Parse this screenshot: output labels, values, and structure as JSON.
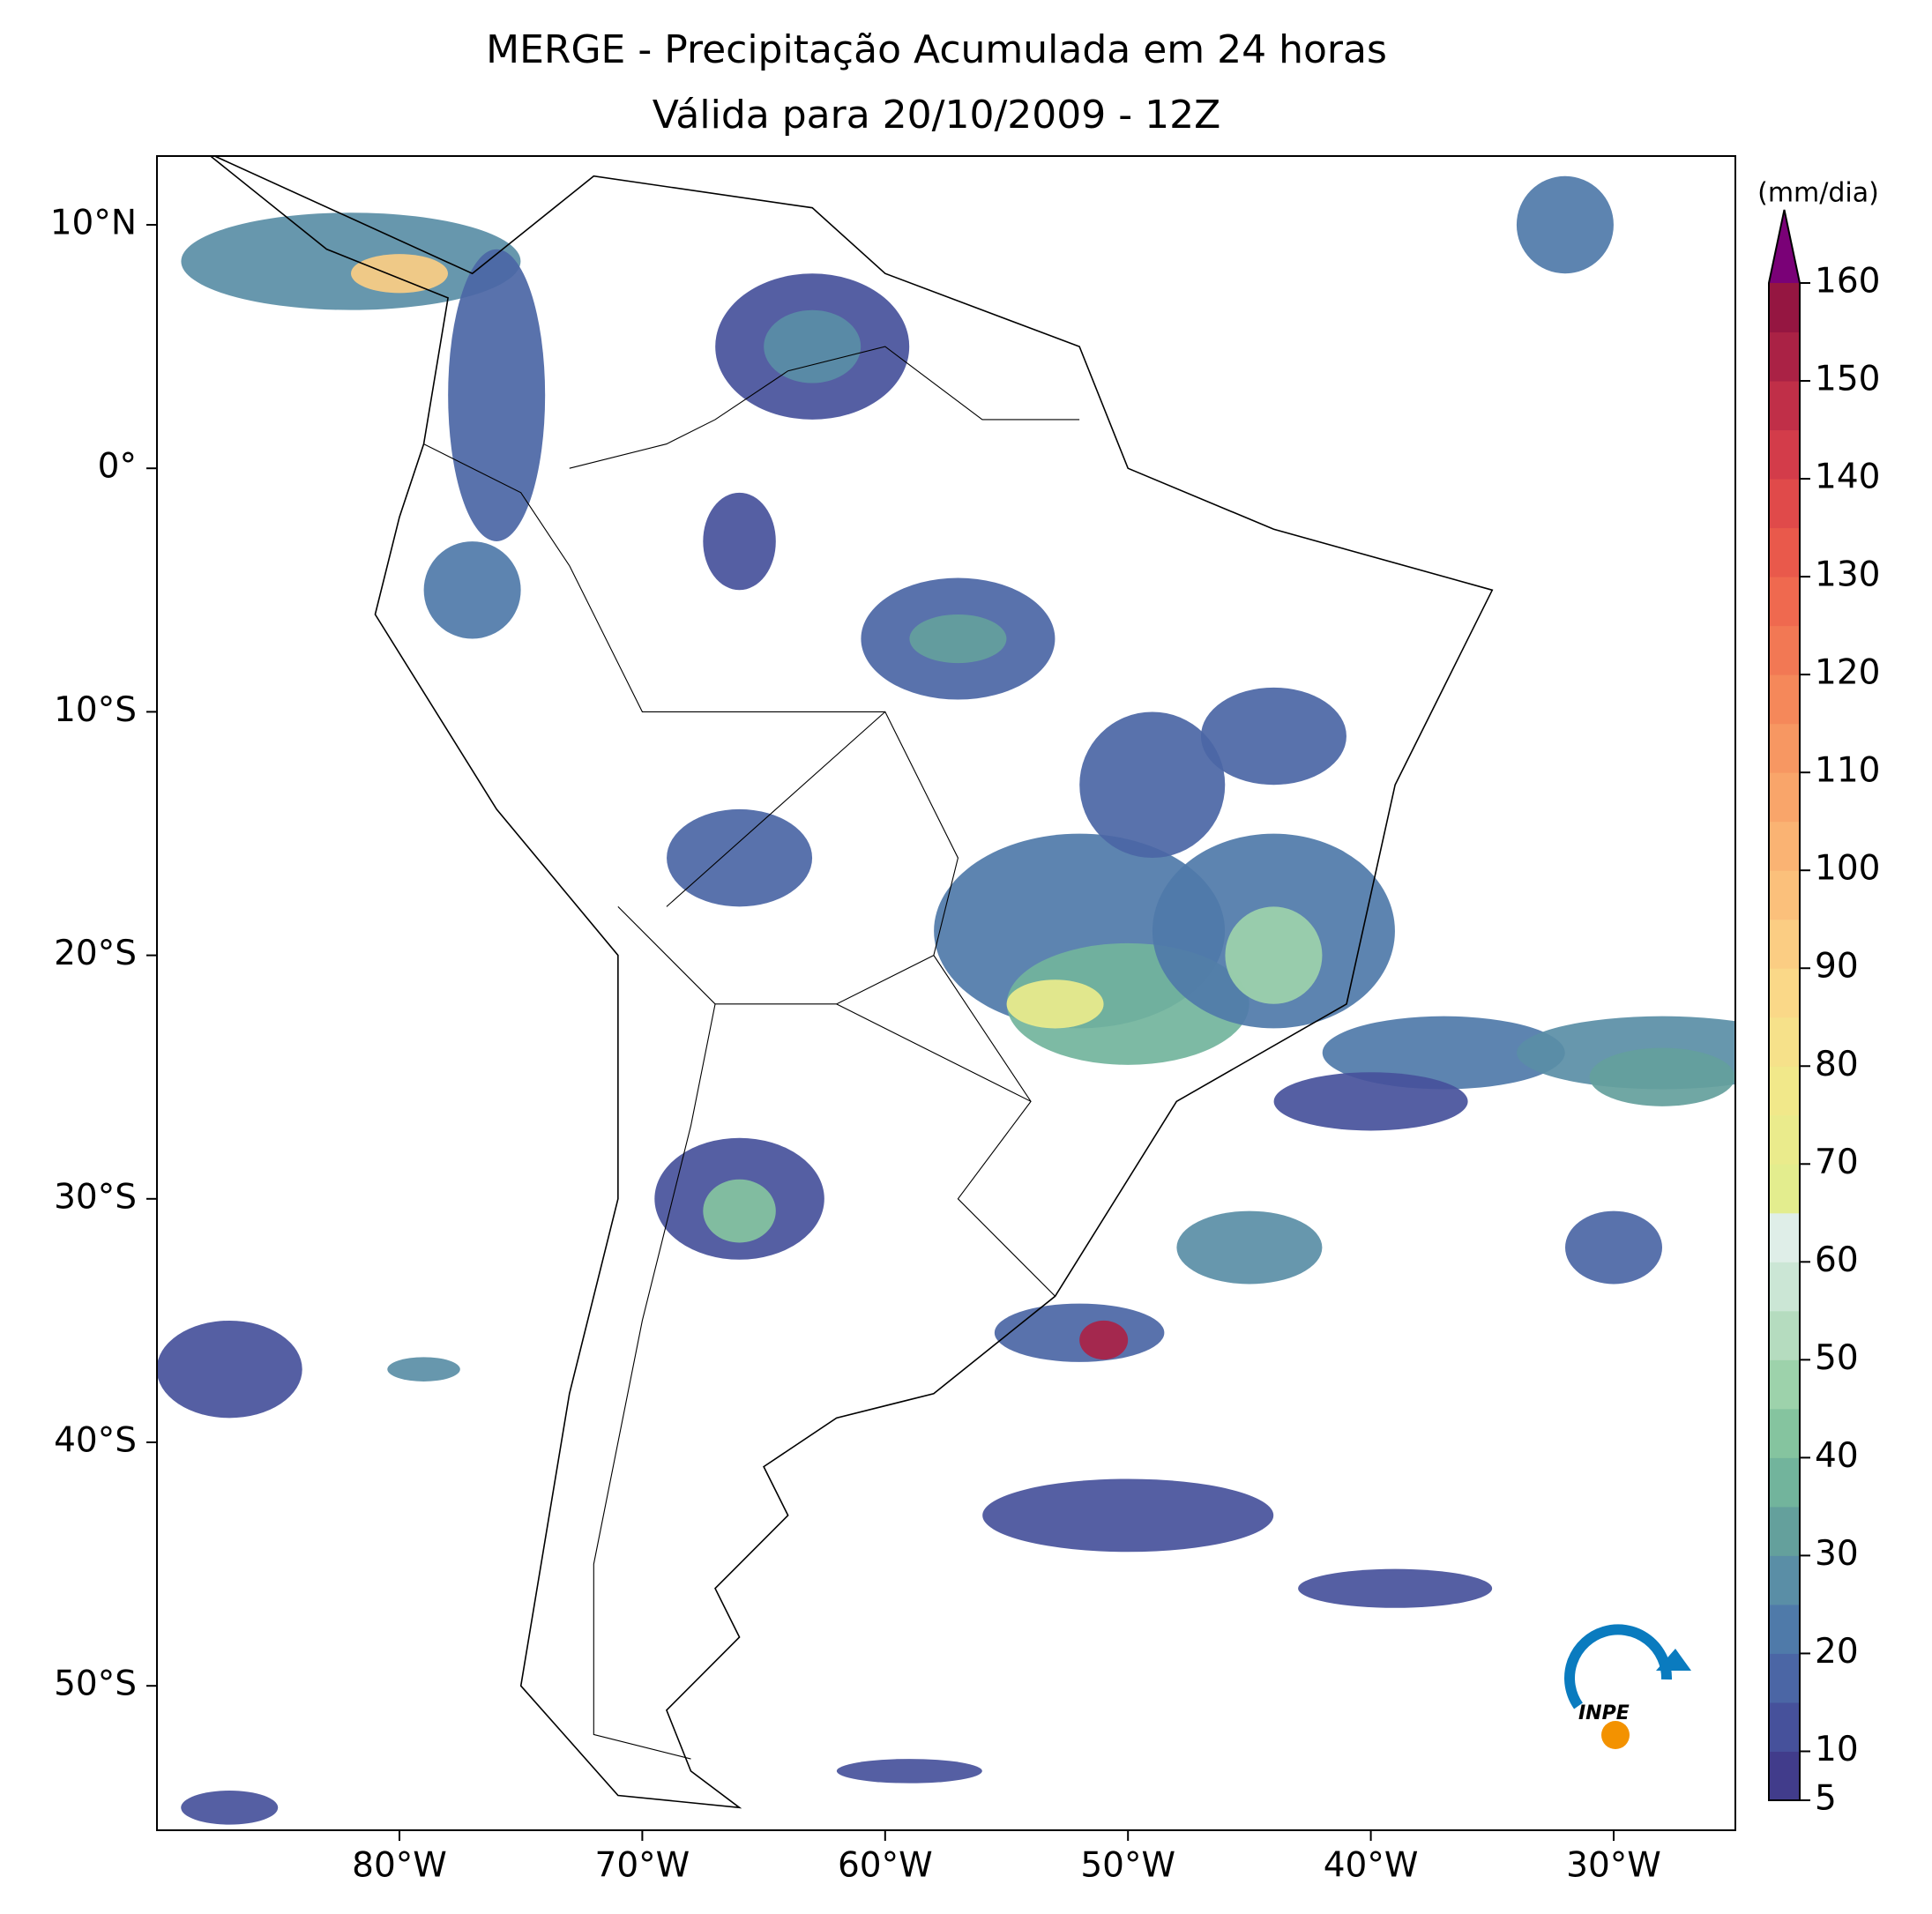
{
  "title": "MERGE - Precipitação Acumulada em 24 horas",
  "subtitle": "Válida para 20/10/2009 - 12Z",
  "map": {
    "lon_labels": [
      {
        "value": -80,
        "label": "80°W"
      },
      {
        "value": -70,
        "label": "70°W"
      },
      {
        "value": -60,
        "label": "60°W"
      },
      {
        "value": -50,
        "label": "50°W"
      },
      {
        "value": -40,
        "label": "40°W"
      },
      {
        "value": -30,
        "label": "30°W"
      }
    ],
    "lat_labels": [
      {
        "value": 10,
        "label": "10°N"
      },
      {
        "value": 0,
        "label": "0°"
      },
      {
        "value": -10,
        "label": "10°S"
      },
      {
        "value": -20,
        "label": "20°S"
      },
      {
        "value": -30,
        "label": "30°S"
      },
      {
        "value": -40,
        "label": "40°S"
      },
      {
        "value": -50,
        "label": "50°S"
      }
    ]
  },
  "colorbar": {
    "unit": "(mm/dia)",
    "levels": [
      5,
      10,
      15,
      20,
      25,
      30,
      35,
      40,
      45,
      50,
      55,
      60,
      65,
      70,
      75,
      80,
      85,
      90,
      95,
      100,
      105,
      110,
      115,
      120,
      125,
      130,
      135,
      140,
      145,
      150,
      155,
      160
    ],
    "colors": [
      "#413c8b",
      "#46519b",
      "#4b66a5",
      "#4f7aa9",
      "#5a8ea6",
      "#64a09c",
      "#72b49c",
      "#85c49f",
      "#9dd2ab",
      "#b5dcbf",
      "#cbe6d5",
      "#dfeee8",
      "#e3ed8e",
      "#eaeb8c",
      "#f1e88a",
      "#f6e18a",
      "#fad888",
      "#fbcd83",
      "#fbc07b",
      "#fab373",
      "#f9a56a",
      "#f79762",
      "#f5885a",
      "#f27854",
      "#ef694f",
      "#e9594b",
      "#e04a4a",
      "#d33c4a",
      "#c02f48",
      "#aa2245",
      "#951641"
    ],
    "extend_color": "#7a0177",
    "ticks": [
      5,
      10,
      20,
      30,
      40,
      50,
      60,
      70,
      80,
      90,
      100,
      110,
      120,
      130,
      140,
      150,
      160
    ]
  },
  "logo": "INPE"
}
